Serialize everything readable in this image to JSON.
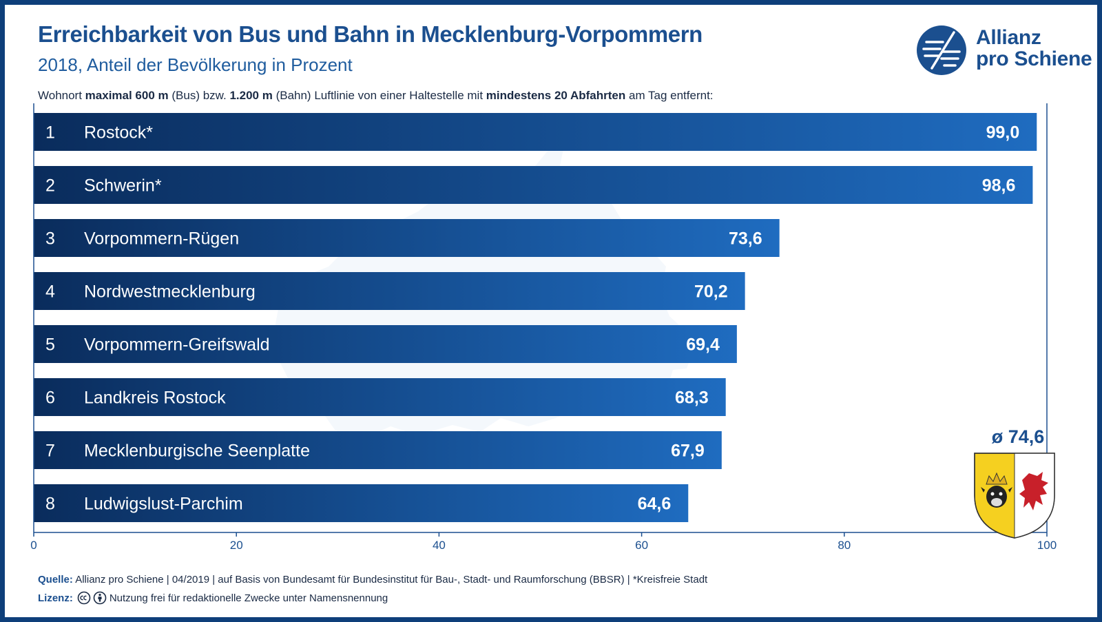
{
  "header": {
    "title": "Erreichbarkeit von Bus und Bahn in Mecklenburg-Vorpommern",
    "subtitle": "2018, Anteil der Bevölkerung in Prozent",
    "note_parts": [
      "Wohnort ",
      "maximal 600 m",
      " (Bus) bzw. ",
      "1.200 m",
      " (Bahn) Luftlinie von einer Haltestelle mit ",
      "mindestens 20 Abfahrten",
      " am Tag entfernt:"
    ]
  },
  "logo": {
    "line1": "Allianz",
    "line2": "pro Schiene",
    "icon": "allianz-pro-schiene-logo-icon"
  },
  "average": {
    "label": "ø 74,6",
    "icon": "mecklenburg-vorpommern-coat-of-arms-icon"
  },
  "footer": {
    "source_label": "Quelle:",
    "source_text": "Allianz pro Schiene | 04/2019 | auf Basis von Bundesamt für Bundesinstitut für Bau-, Stadt- und Raumforschung (BBSR) | *Kreisfreie Stadt",
    "license_label": "Lizenz:",
    "license_text": "Nutzung frei für redaktionelle Zwecke unter Namensnennung",
    "license_icons": [
      "cc-icon",
      "attribution-icon"
    ]
  },
  "colors": {
    "bar_start": "#0a2c5c",
    "bar_end": "#1f6cc0",
    "title": "#1b4f8f",
    "frame": "#0e3f7a",
    "map": "#dce8f5"
  },
  "chart_data": {
    "type": "bar",
    "orientation": "horizontal",
    "ranks": [
      "1",
      "2",
      "3",
      "4",
      "5",
      "6",
      "7",
      "8"
    ],
    "categories": [
      "Rostock*",
      "Schwerin*",
      "Vorpommern-Rügen",
      "Nordwestmecklenburg",
      "Vorpommern-Greifswald",
      "Landkreis Rostock",
      "Mecklenburgische Seenplatte",
      "Ludwigslust-Parchim"
    ],
    "values": [
      99.0,
      98.6,
      73.6,
      70.2,
      69.4,
      68.3,
      67.9,
      64.6
    ],
    "value_labels": [
      "99,0",
      "98,6",
      "73,6",
      "70,2",
      "69,4",
      "68,3",
      "67,9",
      "64,6"
    ],
    "xlim": [
      0,
      100
    ],
    "xticks": [
      0,
      20,
      40,
      60,
      80,
      100
    ],
    "grid": false,
    "legend": "none"
  }
}
